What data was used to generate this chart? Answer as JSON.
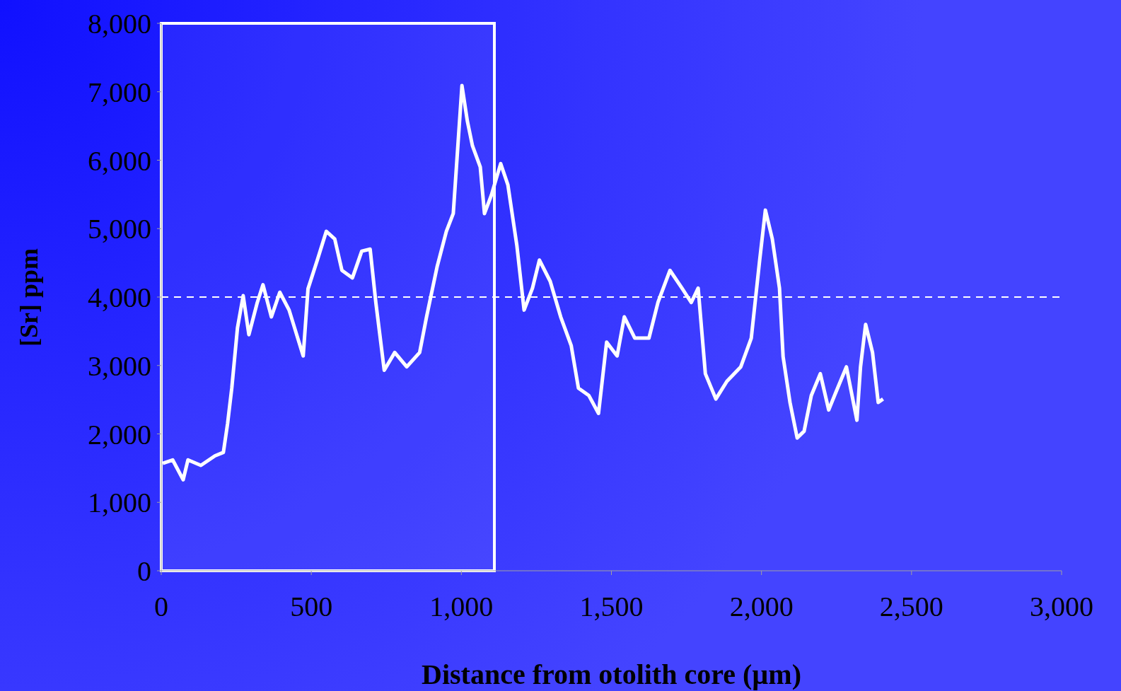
{
  "chart_data": {
    "type": "line",
    "xlabel": "Distance from otolith core (µm)",
    "ylabel": "[Sr] ppm",
    "x": [
      5,
      38,
      73,
      89,
      132,
      179,
      207,
      221,
      235,
      254,
      273,
      292,
      320,
      339,
      367,
      395,
      426,
      473,
      489,
      520,
      550,
      578,
      602,
      637,
      668,
      696,
      715,
      743,
      778,
      818,
      861,
      884,
      919,
      950,
      973,
      1002,
      1020,
      1037,
      1063,
      1077,
      1100,
      1131,
      1155,
      1185,
      1209,
      1237,
      1260,
      1296,
      1331,
      1366,
      1390,
      1425,
      1457,
      1484,
      1519,
      1543,
      1578,
      1625,
      1655,
      1695,
      1735,
      1766,
      1789,
      1813,
      1848,
      1885,
      1931,
      1966,
      1994,
      2013,
      2036,
      2060,
      2072,
      2095,
      2119,
      2142,
      2166,
      2196,
      2224,
      2248,
      2283,
      2318,
      2330,
      2347,
      2370,
      2389,
      2405
    ],
    "series": [
      {
        "color": "#ffffff",
        "values": [
          1570,
          1620,
          1330,
          1620,
          1540,
          1680,
          1730,
          2150,
          2670,
          3550,
          4020,
          3450,
          3920,
          4180,
          3710,
          4070,
          3810,
          3140,
          4120,
          4540,
          4960,
          4850,
          4390,
          4280,
          4670,
          4700,
          3920,
          2930,
          3190,
          2980,
          3190,
          3710,
          4440,
          4960,
          5220,
          7090,
          6570,
          6210,
          5900,
          5220,
          5490,
          5950,
          5640,
          4750,
          3810,
          4130,
          4540,
          4230,
          3710,
          3290,
          2670,
          2560,
          2300,
          3340,
          3140,
          3710,
          3400,
          3400,
          3920,
          4390,
          4130,
          3920,
          4130,
          2880,
          2510,
          2770,
          2980,
          3400,
          4540,
          5270,
          4850,
          4130,
          3130,
          2460,
          1940,
          2040,
          2560,
          2880,
          2350,
          2610,
          2980,
          2200,
          2980,
          3600,
          3190,
          2460,
          2510
        ]
      }
    ],
    "xlim": [
      0,
      3000
    ],
    "xticks": [
      {
        "value": 0,
        "label": "0"
      },
      {
        "value": 500,
        "label": "500"
      },
      {
        "value": 1000,
        "label": "1,000"
      },
      {
        "value": 1500,
        "label": "1,500"
      },
      {
        "value": 2000,
        "label": "2,000"
      },
      {
        "value": 2500,
        "label": "2,500"
      },
      {
        "value": 3000,
        "label": "3,000"
      }
    ],
    "ylim": [
      0,
      8000
    ],
    "yticks": [
      {
        "value": 0,
        "label": "0"
      },
      {
        "value": 1000,
        "label": "1,000"
      },
      {
        "value": 2000,
        "label": "2,000"
      },
      {
        "value": 3000,
        "label": "3,000"
      },
      {
        "value": 4000,
        "label": "4,000"
      },
      {
        "value": 5000,
        "label": "5,000"
      },
      {
        "value": 6000,
        "label": "6,000"
      },
      {
        "value": 7000,
        "label": "7,000"
      },
      {
        "value": 8000,
        "label": "8,000"
      }
    ],
    "ref_lines": [
      {
        "axis": "y",
        "value": 4000,
        "color": "#ffffff",
        "line_style": "dashed"
      }
    ],
    "bands": [
      {
        "axis": "x",
        "from": 0,
        "to": 1110,
        "color": "#ffffff"
      }
    ],
    "grid": false,
    "legend": false,
    "marker": "none",
    "line_style": "solid"
  }
}
